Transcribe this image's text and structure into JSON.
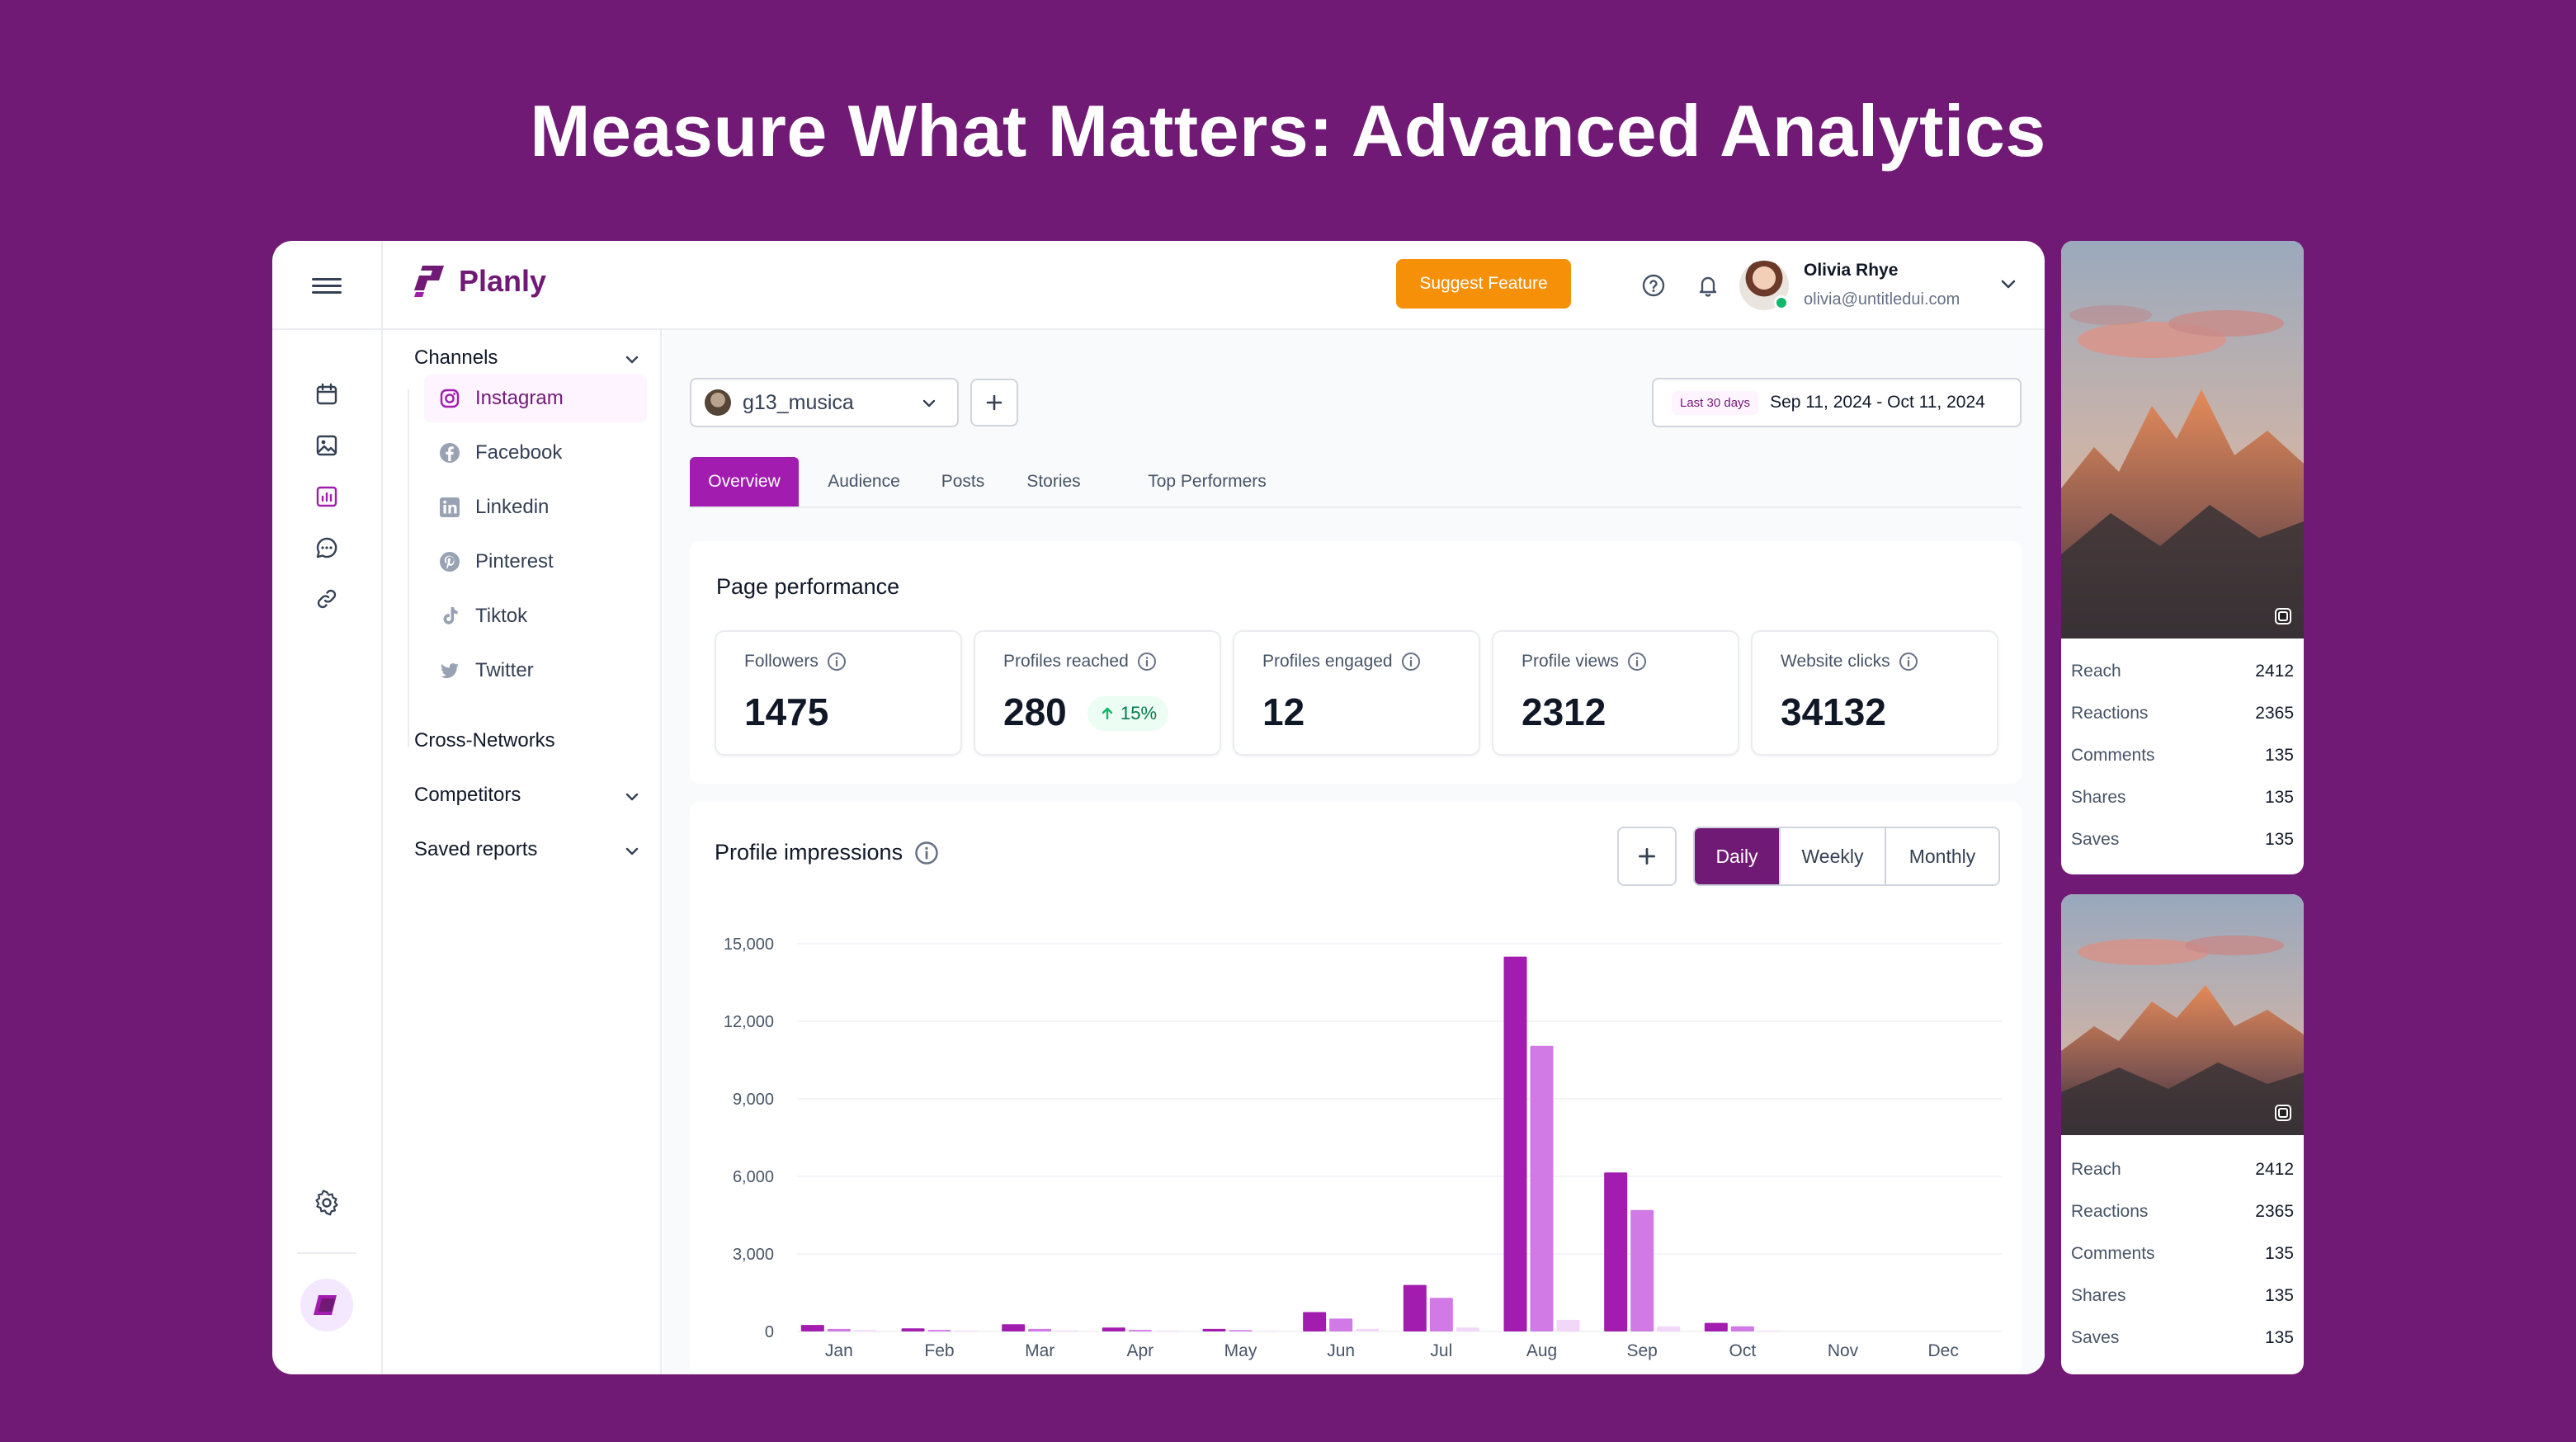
{
  "headline": "Measure What Matters: Advanced Analytics",
  "brand": {
    "name": "Planly",
    "color": "#701a75"
  },
  "topbar": {
    "suggest_label": "Suggest Feature",
    "user_name": "Olivia Rhye",
    "user_email": "olivia@untitledui.com",
    "icons": [
      "menu-icon",
      "help-icon",
      "bell-icon",
      "chevron-down-icon"
    ]
  },
  "rail": {
    "icons": [
      "calendar-icon",
      "image-icon",
      "analytics-icon",
      "chat-icon",
      "link-icon",
      "settings-icon"
    ]
  },
  "sidebar": {
    "channels_label": "Channels",
    "channels": [
      {
        "label": "Instagram",
        "icon": "instagram-icon",
        "active": true
      },
      {
        "label": "Facebook",
        "icon": "facebook-icon"
      },
      {
        "label": "Linkedin",
        "icon": "linkedin-icon"
      },
      {
        "label": "Pinterest",
        "icon": "pinterest-icon"
      },
      {
        "label": "Tiktok",
        "icon": "tiktok-icon"
      },
      {
        "label": "Twitter",
        "icon": "twitter-icon"
      }
    ],
    "cross_networks": "Cross-Networks",
    "competitors": "Competitors",
    "saved_reports": "Saved reports"
  },
  "toolbar": {
    "account": "g13_musica",
    "date_badge": "Last 30 days",
    "date_range": "Sep 11, 2024 - Oct 11, 2024"
  },
  "tabs": [
    "Overview",
    "Audience",
    "Posts",
    "Stories",
    "Top Performers"
  ],
  "active_tab": "Overview",
  "performance": {
    "title": "Page performance",
    "metrics": [
      {
        "label": "Followers",
        "value": "1475"
      },
      {
        "label": "Profiles reached",
        "value": "280",
        "badge": "15%"
      },
      {
        "label": "Profiles engaged",
        "value": "12"
      },
      {
        "label": "Profile views",
        "value": "2312"
      },
      {
        "label": "Website clicks",
        "value": "34132"
      }
    ]
  },
  "impressions": {
    "title": "Profile impressions",
    "periods": [
      "Daily",
      "Weekly",
      "Monthly"
    ],
    "active_period": "Daily"
  },
  "chart_data": {
    "type": "bar",
    "title": "",
    "xlabel": "",
    "ylabel": "",
    "categories": [
      "Jan",
      "Feb",
      "Mar",
      "Apr",
      "May",
      "Jun",
      "Jul",
      "Aug",
      "Sep",
      "Oct",
      "Nov",
      "Dec"
    ],
    "series": [
      {
        "values": [
          250,
          120,
          280,
          150,
          100,
          750,
          1800,
          14500,
          6150,
          330,
          0,
          0
        ],
        "color": "#a21caf"
      },
      {
        "values": [
          100,
          60,
          100,
          60,
          50,
          500,
          1300,
          11050,
          4700,
          200,
          0,
          0
        ],
        "color": "#d17ae6"
      },
      {
        "values": [
          50,
          30,
          40,
          30,
          20,
          100,
          150,
          450,
          200,
          30,
          0,
          0
        ],
        "color": "#f1d7f8"
      }
    ],
    "ylim": [
      0,
      15000
    ],
    "yticks": [
      "0",
      "3,000",
      "6,000",
      "9,000",
      "12,000",
      "15,000"
    ],
    "ytick_values": [
      0,
      3000,
      6000,
      9000,
      12000,
      15000
    ],
    "grid": true
  },
  "posts": [
    {
      "stats": [
        {
          "k": "Reach",
          "v": "2412"
        },
        {
          "k": "Reactions",
          "v": "2365"
        },
        {
          "k": "Comments",
          "v": "135"
        },
        {
          "k": "Shares",
          "v": "135"
        },
        {
          "k": "Saves",
          "v": "135"
        }
      ]
    },
    {
      "stats": [
        {
          "k": "Reach",
          "v": "2412"
        },
        {
          "k": "Reactions",
          "v": "2365"
        },
        {
          "k": "Comments",
          "v": "135"
        },
        {
          "k": "Shares",
          "v": "135"
        },
        {
          "k": "Saves",
          "v": "135"
        }
      ]
    }
  ]
}
